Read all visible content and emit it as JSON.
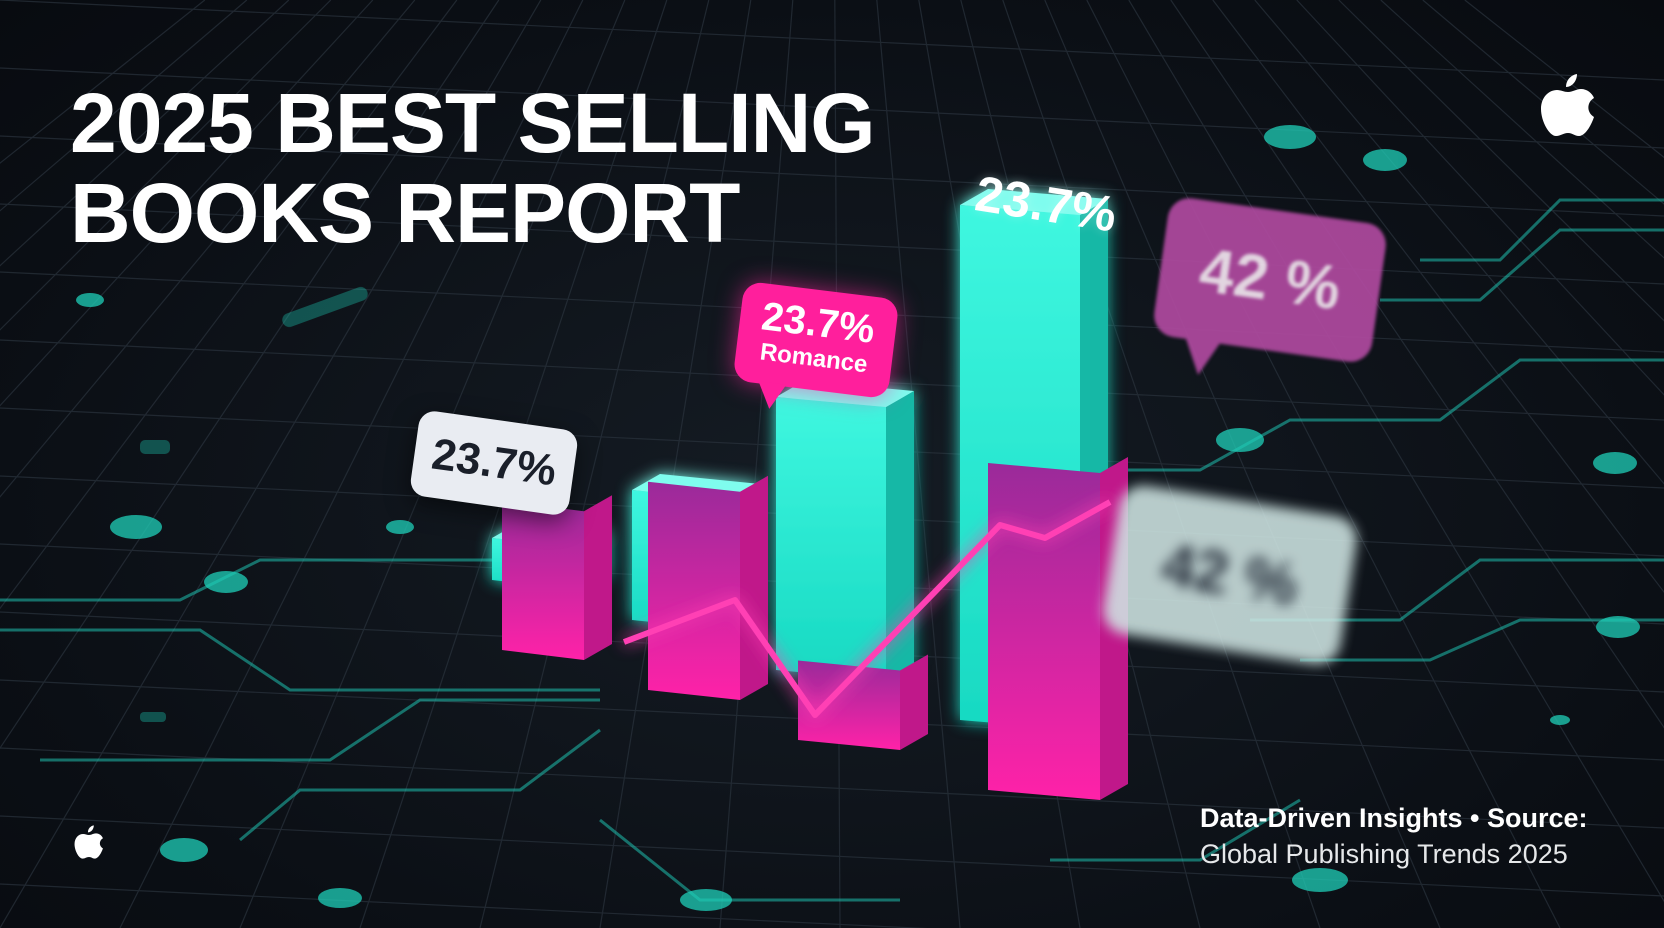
{
  "header": {
    "title_line1": "2025 BEST SELLING",
    "title_line2": "BOOKS REPORT"
  },
  "footer": {
    "source_line1": "Data-Driven Insights • Source:",
    "source_line2": "Global Publishing Trends 2025"
  },
  "icons": {
    "top_right": "apple-logo-icon",
    "bottom_left": "apple-logo-icon"
  },
  "colors": {
    "accent_teal": "#1ff2d6",
    "accent_pink": "#ff1f9c",
    "accent_purple": "#b04aa0",
    "background": "#0c1016"
  },
  "chart_data": {
    "type": "bar",
    "title": "2025 BEST SELLING BOOKS REPORT",
    "categories": [
      "",
      "",
      "",
      ""
    ],
    "series": [
      {
        "values": [
          2,
          10,
          23,
          45
        ]
      },
      {
        "values": [
          12,
          18,
          5,
          30
        ]
      }
    ],
    "labels": {
      "top_bar": "23.7%",
      "white_bubble": "23.7%",
      "pink_bubble_value": "23.7%",
      "pink_bubble_category": "Romance",
      "purple_bubble": "42 %",
      "grey_bubble": "42 %"
    }
  }
}
